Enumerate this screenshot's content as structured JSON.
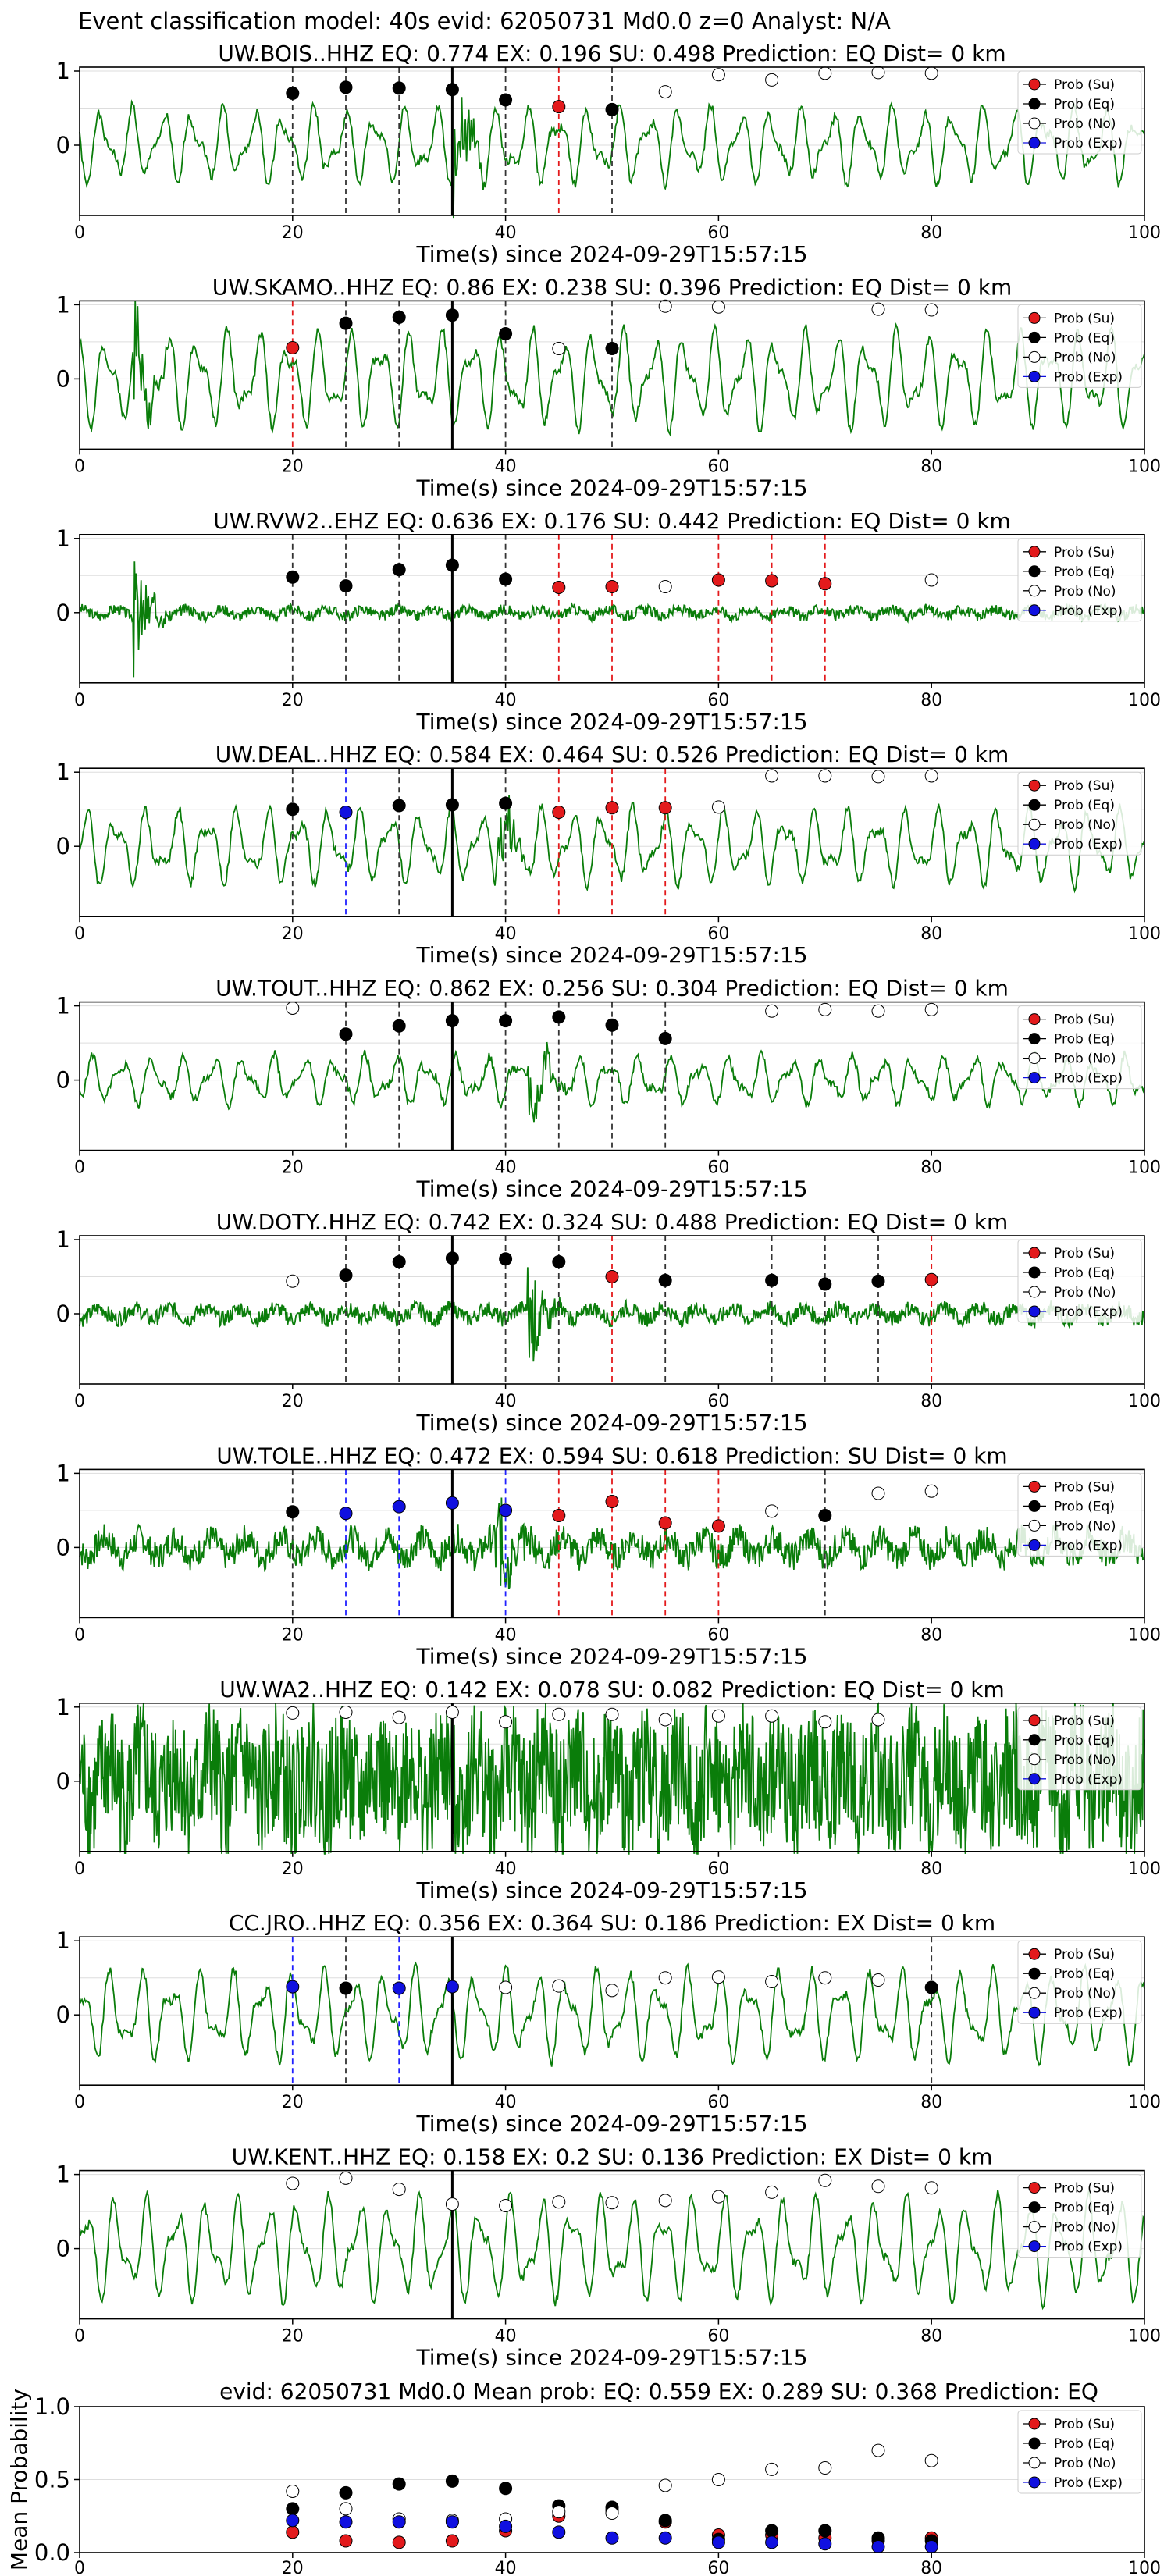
{
  "suptitle": "Event classification model: 40s evid: 62050731 Md0.0 z=0 Analyst: N/A",
  "legend": [
    "Prob (Su)",
    "Prob (Eq)",
    "Prob (No)",
    "Prob (Exp)"
  ],
  "colors": {
    "su": "#e31a1c",
    "eq": "#000000",
    "no": "#ffffff",
    "exp": "#1010e0",
    "trace": "#0a7d0a",
    "grid": "#dddddd"
  },
  "xlabel": "Time(s) since 2024-09-29T15:57:15",
  "chart_data": [
    {
      "type": "line",
      "title": "UW.BOIS..HHZ    EQ: 0.774  EX: 0.196  SU: 0.498    Prediction: EQ     Dist= 0 km",
      "xlim": [
        0,
        100
      ],
      "yticks": [
        "1",
        "0"
      ],
      "xticks": [
        "0",
        "20",
        "40",
        "60",
        "80",
        "100"
      ],
      "xlabel": "Time(s) since 2024-09-29T15:57:15",
      "pick": 35,
      "seed": 1,
      "style": "smooth",
      "amp": 0.55,
      "burst": 35,
      "points": [
        {
          "t": 20,
          "c": "eq",
          "y": 0.7
        },
        {
          "t": 25,
          "c": "eq",
          "y": 0.78
        },
        {
          "t": 30,
          "c": "eq",
          "y": 0.77
        },
        {
          "t": 35,
          "c": "eq",
          "y": 0.75
        },
        {
          "t": 40,
          "c": "eq",
          "y": 0.61
        },
        {
          "t": 45,
          "c": "su",
          "y": 0.52
        },
        {
          "t": 50,
          "c": "eq",
          "y": 0.48
        },
        {
          "t": 55,
          "c": "no",
          "y": 0.72
        },
        {
          "t": 60,
          "c": "no",
          "y": 0.95
        },
        {
          "t": 65,
          "c": "no",
          "y": 0.88
        },
        {
          "t": 70,
          "c": "no",
          "y": 0.97
        },
        {
          "t": 75,
          "c": "no",
          "y": 0.98
        },
        {
          "t": 80,
          "c": "no",
          "y": 0.97
        }
      ]
    },
    {
      "type": "line",
      "title": "UW.SKAMO..HHZ    EQ: 0.86  EX: 0.238  SU: 0.396    Prediction: EQ     Dist= 0 km",
      "xlim": [
        0,
        100
      ],
      "yticks": [
        "1",
        "0"
      ],
      "xticks": [
        "0",
        "20",
        "40",
        "60",
        "80",
        "100"
      ],
      "xlabel": "Time(s) since 2024-09-29T15:57:15",
      "pick": 35,
      "seed": 2,
      "style": "smooth",
      "amp": 0.7,
      "burst": 5,
      "points": [
        {
          "t": 20,
          "c": "su",
          "y": 0.42
        },
        {
          "t": 25,
          "c": "eq",
          "y": 0.75
        },
        {
          "t": 30,
          "c": "eq",
          "y": 0.83
        },
        {
          "t": 35,
          "c": "eq",
          "y": 0.86
        },
        {
          "t": 40,
          "c": "eq",
          "y": 0.61
        },
        {
          "t": 45,
          "c": "no",
          "y": 0.41
        },
        {
          "t": 50,
          "c": "eq",
          "y": 0.41
        },
        {
          "t": 55,
          "c": "no",
          "y": 0.98
        },
        {
          "t": 60,
          "c": "no",
          "y": 0.97
        },
        {
          "t": 75,
          "c": "no",
          "y": 0.94
        },
        {
          "t": 80,
          "c": "no",
          "y": 0.93
        }
      ]
    },
    {
      "type": "line",
      "title": "UW.RVW2..EHZ    EQ: 0.636  EX: 0.176  SU: 0.442    Prediction: EQ     Dist= 0 km",
      "xlim": [
        0,
        100
      ],
      "yticks": [
        "1",
        "0"
      ],
      "xticks": [
        "0",
        "20",
        "40",
        "60",
        "80",
        "100"
      ],
      "xlabel": "Time(s) since 2024-09-29T15:57:15",
      "pick": 35,
      "seed": 3,
      "style": "noisy",
      "amp": 0.12,
      "burst": 5,
      "points": [
        {
          "t": 20,
          "c": "eq",
          "y": 0.48
        },
        {
          "t": 25,
          "c": "eq",
          "y": 0.36
        },
        {
          "t": 30,
          "c": "eq",
          "y": 0.58
        },
        {
          "t": 35,
          "c": "eq",
          "y": 0.64
        },
        {
          "t": 40,
          "c": "eq",
          "y": 0.45
        },
        {
          "t": 45,
          "c": "su",
          "y": 0.34
        },
        {
          "t": 50,
          "c": "su",
          "y": 0.35
        },
        {
          "t": 55,
          "c": "no",
          "y": 0.35
        },
        {
          "t": 60,
          "c": "su",
          "y": 0.44
        },
        {
          "t": 65,
          "c": "su",
          "y": 0.43
        },
        {
          "t": 70,
          "c": "su",
          "y": 0.39
        },
        {
          "t": 80,
          "c": "no",
          "y": 0.44
        }
      ]
    },
    {
      "type": "line",
      "title": "UW.DEAL..HHZ    EQ: 0.584  EX: 0.464  SU: 0.526    Prediction: EQ     Dist= 0 km",
      "xlim": [
        0,
        100
      ],
      "yticks": [
        "1",
        "0"
      ],
      "xticks": [
        "0",
        "20",
        "40",
        "60",
        "80",
        "100"
      ],
      "xlabel": "Time(s) since 2024-09-29T15:57:15",
      "pick": 35,
      "seed": 4,
      "style": "smooth",
      "amp": 0.55,
      "burst": 39,
      "points": [
        {
          "t": 20,
          "c": "eq",
          "y": 0.5
        },
        {
          "t": 25,
          "c": "exp",
          "y": 0.46
        },
        {
          "t": 30,
          "c": "eq",
          "y": 0.55
        },
        {
          "t": 35,
          "c": "eq",
          "y": 0.56
        },
        {
          "t": 40,
          "c": "eq",
          "y": 0.58
        },
        {
          "t": 45,
          "c": "su",
          "y": 0.46
        },
        {
          "t": 50,
          "c": "su",
          "y": 0.52
        },
        {
          "t": 55,
          "c": "su",
          "y": 0.52
        },
        {
          "t": 60,
          "c": "no",
          "y": 0.53
        },
        {
          "t": 65,
          "c": "no",
          "y": 0.95
        },
        {
          "t": 70,
          "c": "no",
          "y": 0.95
        },
        {
          "t": 75,
          "c": "no",
          "y": 0.94
        },
        {
          "t": 80,
          "c": "no",
          "y": 0.95
        }
      ]
    },
    {
      "type": "line",
      "title": "UW.TOUT..HHZ    EQ: 0.862  EX: 0.256  SU: 0.304    Prediction: EQ     Dist= 0 km",
      "xlim": [
        0,
        100
      ],
      "yticks": [
        "1",
        "0"
      ],
      "xticks": [
        "0",
        "20",
        "40",
        "60",
        "80",
        "100"
      ],
      "xlabel": "Time(s) since 2024-09-29T15:57:15",
      "pick": 35,
      "seed": 5,
      "style": "smooth",
      "amp": 0.35,
      "burst": 42,
      "points": [
        {
          "t": 20,
          "c": "no",
          "y": 0.97
        },
        {
          "t": 25,
          "c": "eq",
          "y": 0.62
        },
        {
          "t": 30,
          "c": "eq",
          "y": 0.73
        },
        {
          "t": 35,
          "c": "eq",
          "y": 0.8
        },
        {
          "t": 40,
          "c": "eq",
          "y": 0.8
        },
        {
          "t": 45,
          "c": "eq",
          "y": 0.85
        },
        {
          "t": 50,
          "c": "eq",
          "y": 0.74
        },
        {
          "t": 55,
          "c": "eq",
          "y": 0.56
        },
        {
          "t": 65,
          "c": "no",
          "y": 0.93
        },
        {
          "t": 70,
          "c": "no",
          "y": 0.95
        },
        {
          "t": 75,
          "c": "no",
          "y": 0.93
        },
        {
          "t": 80,
          "c": "no",
          "y": 0.95
        }
      ]
    },
    {
      "type": "line",
      "title": "UW.DOTY..HHZ    EQ: 0.742  EX: 0.324  SU: 0.488    Prediction: EQ     Dist= 0 km",
      "xlim": [
        0,
        100
      ],
      "yticks": [
        "1",
        "0"
      ],
      "xticks": [
        "0",
        "20",
        "40",
        "60",
        "80",
        "100"
      ],
      "xlabel": "Time(s) since 2024-09-29T15:57:15",
      "pick": 35,
      "seed": 6,
      "style": "noisy",
      "amp": 0.18,
      "burst": 42,
      "points": [
        {
          "t": 20,
          "c": "no",
          "y": 0.44
        },
        {
          "t": 25,
          "c": "eq",
          "y": 0.52
        },
        {
          "t": 30,
          "c": "eq",
          "y": 0.7
        },
        {
          "t": 35,
          "c": "eq",
          "y": 0.75
        },
        {
          "t": 40,
          "c": "eq",
          "y": 0.74
        },
        {
          "t": 45,
          "c": "eq",
          "y": 0.7
        },
        {
          "t": 50,
          "c": "su",
          "y": 0.5
        },
        {
          "t": 55,
          "c": "eq",
          "y": 0.45
        },
        {
          "t": 65,
          "c": "eq",
          "y": 0.45
        },
        {
          "t": 70,
          "c": "eq",
          "y": 0.4
        },
        {
          "t": 75,
          "c": "eq",
          "y": 0.44
        },
        {
          "t": 80,
          "c": "su",
          "y": 0.46
        }
      ]
    },
    {
      "type": "line",
      "title": "UW.TOLE..HHZ    EQ: 0.472  EX: 0.594  SU: 0.618    Prediction: SU     Dist= 0 km",
      "xlim": [
        0,
        100
      ],
      "yticks": [
        "1",
        "0"
      ],
      "xticks": [
        "0",
        "20",
        "40",
        "60",
        "80",
        "100"
      ],
      "xlabel": "Time(s) since 2024-09-29T15:57:15",
      "pick": 35,
      "seed": 7,
      "style": "noisy",
      "amp": 0.32,
      "burst": 39,
      "points": [
        {
          "t": 20,
          "c": "eq",
          "y": 0.48
        },
        {
          "t": 25,
          "c": "exp",
          "y": 0.46
        },
        {
          "t": 30,
          "c": "exp",
          "y": 0.55
        },
        {
          "t": 35,
          "c": "exp",
          "y": 0.6
        },
        {
          "t": 40,
          "c": "exp",
          "y": 0.5
        },
        {
          "t": 45,
          "c": "su",
          "y": 0.43
        },
        {
          "t": 50,
          "c": "su",
          "y": 0.62
        },
        {
          "t": 55,
          "c": "su",
          "y": 0.33
        },
        {
          "t": 60,
          "c": "su",
          "y": 0.29
        },
        {
          "t": 65,
          "c": "no",
          "y": 0.49
        },
        {
          "t": 70,
          "c": "eq",
          "y": 0.43
        },
        {
          "t": 75,
          "c": "no",
          "y": 0.73
        },
        {
          "t": 80,
          "c": "no",
          "y": 0.76
        }
      ]
    },
    {
      "type": "line",
      "title": "UW.WA2..HHZ    EQ: 0.142  EX: 0.078  SU: 0.082    Prediction: EQ     Dist= 0 km",
      "xlim": [
        0,
        100
      ],
      "yticks": [
        "1",
        "0"
      ],
      "xticks": [
        "0",
        "20",
        "40",
        "60",
        "80",
        "100"
      ],
      "xlabel": "Time(s) since 2024-09-29T15:57:15",
      "pick": 35,
      "seed": 8,
      "style": "dense",
      "amp": 0.8,
      "burst": -1,
      "points": [
        {
          "t": 20,
          "c": "no",
          "y": 0.92
        },
        {
          "t": 25,
          "c": "no",
          "y": 0.93
        },
        {
          "t": 30,
          "c": "no",
          "y": 0.86
        },
        {
          "t": 35,
          "c": "no",
          "y": 0.93
        },
        {
          "t": 40,
          "c": "no",
          "y": 0.8
        },
        {
          "t": 45,
          "c": "no",
          "y": 0.9
        },
        {
          "t": 50,
          "c": "no",
          "y": 0.9
        },
        {
          "t": 55,
          "c": "no",
          "y": 0.83
        },
        {
          "t": 60,
          "c": "no",
          "y": 0.88
        },
        {
          "t": 65,
          "c": "no",
          "y": 0.88
        },
        {
          "t": 70,
          "c": "no",
          "y": 0.8
        },
        {
          "t": 75,
          "c": "no",
          "y": 0.83
        }
      ]
    },
    {
      "type": "line",
      "title": "CC.JRO..HHZ    EQ: 0.356  EX: 0.364  SU: 0.186    Prediction: EX     Dist= 0 km",
      "xlim": [
        0,
        100
      ],
      "yticks": [
        "1",
        "0"
      ],
      "xticks": [
        "0",
        "20",
        "40",
        "60",
        "80",
        "100"
      ],
      "xlabel": "Time(s) since 2024-09-29T15:57:15",
      "pick": 35,
      "seed": 9,
      "style": "smooth",
      "amp": 0.65,
      "burst": -1,
      "points": [
        {
          "t": 20,
          "c": "exp",
          "y": 0.38
        },
        {
          "t": 25,
          "c": "eq",
          "y": 0.36
        },
        {
          "t": 30,
          "c": "exp",
          "y": 0.36
        },
        {
          "t": 35,
          "c": "exp",
          "y": 0.38
        },
        {
          "t": 40,
          "c": "no",
          "y": 0.37
        },
        {
          "t": 45,
          "c": "no",
          "y": 0.39
        },
        {
          "t": 50,
          "c": "no",
          "y": 0.33
        },
        {
          "t": 55,
          "c": "no",
          "y": 0.5
        },
        {
          "t": 60,
          "c": "no",
          "y": 0.51
        },
        {
          "t": 65,
          "c": "no",
          "y": 0.45
        },
        {
          "t": 70,
          "c": "no",
          "y": 0.5
        },
        {
          "t": 75,
          "c": "no",
          "y": 0.47
        },
        {
          "t": 80,
          "c": "eq",
          "y": 0.37
        }
      ]
    },
    {
      "type": "line",
      "title": "UW.KENT..HHZ    EQ: 0.158  EX: 0.2  SU: 0.136    Prediction: EX     Dist= 0 km",
      "xlim": [
        0,
        100
      ],
      "yticks": [
        "1",
        "0"
      ],
      "xticks": [
        "0",
        "20",
        "40",
        "60",
        "80",
        "100"
      ],
      "xlabel": "Time(s) since 2024-09-29T15:57:15",
      "pick": 35,
      "seed": 10,
      "style": "smooth",
      "amp": 0.75,
      "burst": -1,
      "points": [
        {
          "t": 20,
          "c": "no",
          "y": 0.88
        },
        {
          "t": 25,
          "c": "no",
          "y": 0.95
        },
        {
          "t": 30,
          "c": "no",
          "y": 0.8
        },
        {
          "t": 35,
          "c": "no",
          "y": 0.6
        },
        {
          "t": 40,
          "c": "no",
          "y": 0.58
        },
        {
          "t": 45,
          "c": "no",
          "y": 0.63
        },
        {
          "t": 50,
          "c": "no",
          "y": 0.62
        },
        {
          "t": 55,
          "c": "no",
          "y": 0.65
        },
        {
          "t": 60,
          "c": "no",
          "y": 0.7
        },
        {
          "t": 65,
          "c": "no",
          "y": 0.76
        },
        {
          "t": 70,
          "c": "no",
          "y": 0.92
        },
        {
          "t": 75,
          "c": "no",
          "y": 0.84
        },
        {
          "t": 80,
          "c": "no",
          "y": 0.82
        }
      ]
    },
    {
      "type": "scatter",
      "title": "evid: 62050731   Md0.0   Mean prob:    EQ: 0.559  EX: 0.289  SU: 0.368    Prediction: EQ",
      "ylabel": "Mean Probability",
      "xlim": [
        0,
        100
      ],
      "ylim": [
        0,
        1
      ],
      "yticks": [
        "1.0",
        "0.5",
        "0.0"
      ],
      "xticks": [
        "0",
        "20",
        "40",
        "60",
        "80",
        "100"
      ],
      "x": [
        20,
        25,
        30,
        35,
        40,
        45,
        50,
        55,
        60,
        65,
        70,
        75,
        80
      ],
      "series": [
        {
          "name": "Prob (Su)",
          "c": "su",
          "values": [
            0.14,
            0.08,
            0.07,
            0.08,
            0.15,
            0.25,
            0.29,
            0.21,
            0.12,
            0.12,
            0.1,
            0.08,
            0.1
          ]
        },
        {
          "name": "Prob (Eq)",
          "c": "eq",
          "values": [
            0.3,
            0.41,
            0.47,
            0.49,
            0.44,
            0.32,
            0.31,
            0.22,
            0.09,
            0.15,
            0.15,
            0.1,
            0.08
          ]
        },
        {
          "name": "Prob (No)",
          "c": "no",
          "values": [
            0.42,
            0.3,
            0.23,
            0.22,
            0.23,
            0.28,
            0.27,
            0.46,
            0.5,
            0.57,
            0.58,
            0.7,
            0.63
          ]
        },
        {
          "name": "Prob (Exp)",
          "c": "exp",
          "values": [
            0.22,
            0.21,
            0.21,
            0.21,
            0.18,
            0.14,
            0.1,
            0.1,
            0.07,
            0.07,
            0.06,
            0.04,
            0.04
          ]
        }
      ]
    }
  ]
}
